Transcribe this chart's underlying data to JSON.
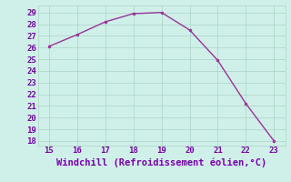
{
  "x": [
    15,
    16,
    17,
    18,
    19,
    20,
    21,
    22,
    23
  ],
  "y": [
    26.1,
    27.1,
    28.2,
    28.9,
    29.0,
    27.5,
    24.9,
    21.2,
    18.0
  ],
  "xlim": [
    14.6,
    23.4
  ],
  "ylim": [
    17.6,
    29.6
  ],
  "xticks": [
    15,
    16,
    17,
    18,
    19,
    20,
    21,
    22,
    23
  ],
  "yticks": [
    18,
    19,
    20,
    21,
    22,
    23,
    24,
    25,
    26,
    27,
    28,
    29
  ],
  "xlabel": "Windchill (Refroidissement éolien,°C)",
  "line_color": "#993399",
  "marker_color": "#993399",
  "bg_color": "#cff0e8",
  "grid_color": "#b0d8cc",
  "xlabel_color": "#7700aa",
  "tick_color": "#7700aa",
  "xlabel_fontsize": 7.5,
  "tick_fontsize": 6.5
}
